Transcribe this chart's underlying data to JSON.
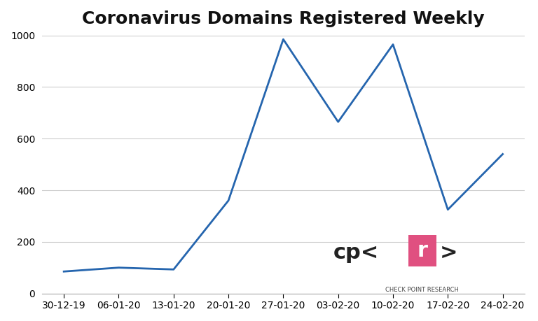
{
  "title": "Coronavirus Domains Registered Weekly",
  "x_labels": [
    "30-12-19",
    "06-01-20",
    "13-01-20",
    "20-01-20",
    "27-01-20",
    "03-02-20",
    "10-02-20",
    "17-02-20",
    "24-02-20"
  ],
  "y_values": [
    85,
    100,
    93,
    360,
    985,
    665,
    965,
    325,
    540
  ],
  "line_color": "#2565AE",
  "line_width": 2.0,
  "ylim": [
    0,
    1000
  ],
  "yticks": [
    0,
    200,
    400,
    600,
    800,
    1000
  ],
  "background_color": "#ffffff",
  "title_fontsize": 18,
  "tick_fontsize": 10,
  "grid_color": "#cccccc",
  "logo_subtext": "CHECK POINT RESEARCH",
  "logo_box_color": "#e05080",
  "logo_text_color": "#222222"
}
